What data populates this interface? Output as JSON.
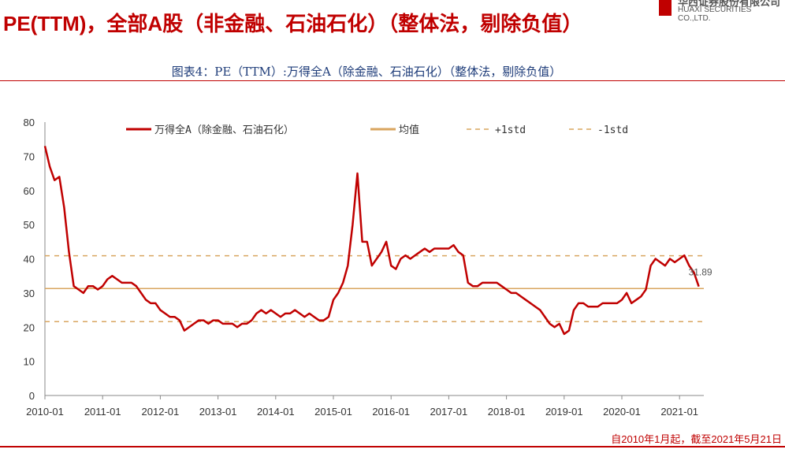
{
  "header": {
    "title": "PE(TTM)，全部A股（非金融、石油石化）（整体法，剔除负值）",
    "logo_cn": "华西证券股份有限公司",
    "logo_en": "HUAXI SECURITIES CO.,LTD."
  },
  "footer": {
    "note": "自2010年1月起，截至2021年5月21日"
  },
  "chart_data": {
    "type": "line",
    "title": "图表4：PE（TTM）:万得全A（除金融、石油石化）（整体法，剔除负值）",
    "xlabel": "",
    "ylabel": "",
    "ylim": [
      0,
      80
    ],
    "yticks": [
      0,
      10,
      20,
      30,
      40,
      50,
      60,
      70,
      80
    ],
    "xticks": [
      "2010-01",
      "2011-01",
      "2012-01",
      "2013-01",
      "2014-01",
      "2015-01",
      "2016-01",
      "2017-01",
      "2018-01",
      "2019-01",
      "2020-01",
      "2021-01"
    ],
    "start": "2010-01",
    "freq": "monthly",
    "series": [
      {
        "name": "万得全A（除金融、石油石化）",
        "color": "#c00000",
        "values": [
          73,
          67,
          63,
          64,
          55,
          42,
          32,
          31,
          30,
          32,
          32,
          31,
          32,
          34,
          35,
          34,
          33,
          33,
          33,
          32,
          30,
          28,
          27,
          27,
          25,
          24,
          23,
          23,
          22,
          19,
          20,
          21,
          22,
          22,
          21,
          22,
          22,
          21,
          21,
          21,
          20,
          21,
          21,
          22,
          24,
          25,
          24,
          25,
          24,
          23,
          24,
          24,
          25,
          24,
          23,
          24,
          23,
          22,
          22,
          23,
          28,
          30,
          33,
          38,
          50,
          65,
          45,
          45,
          38,
          40,
          42,
          45,
          38,
          37,
          40,
          41,
          40,
          41,
          42,
          43,
          42,
          43,
          43,
          43,
          43,
          44,
          42,
          41,
          33,
          32,
          32,
          33,
          33,
          33,
          33,
          32,
          31,
          30,
          30,
          29,
          28,
          27,
          26,
          25,
          23,
          21,
          20,
          21,
          18,
          19,
          25,
          27,
          27,
          26,
          26,
          26,
          27,
          27,
          27,
          27,
          28,
          30,
          27,
          28,
          29,
          31,
          38,
          40,
          39,
          38,
          40,
          39,
          40,
          41,
          38,
          36,
          31.89
        ]
      }
    ],
    "mean": {
      "name": "均值",
      "value": 31.3,
      "color": "#d9a55f"
    },
    "plus1std": {
      "name": "+1std",
      "value": 40.9,
      "color": "#d9a55f"
    },
    "minus1std": {
      "name": "-1std",
      "value": 21.6,
      "color": "#d9a55f"
    },
    "last_label": "31.89",
    "legend_position": "top"
  }
}
